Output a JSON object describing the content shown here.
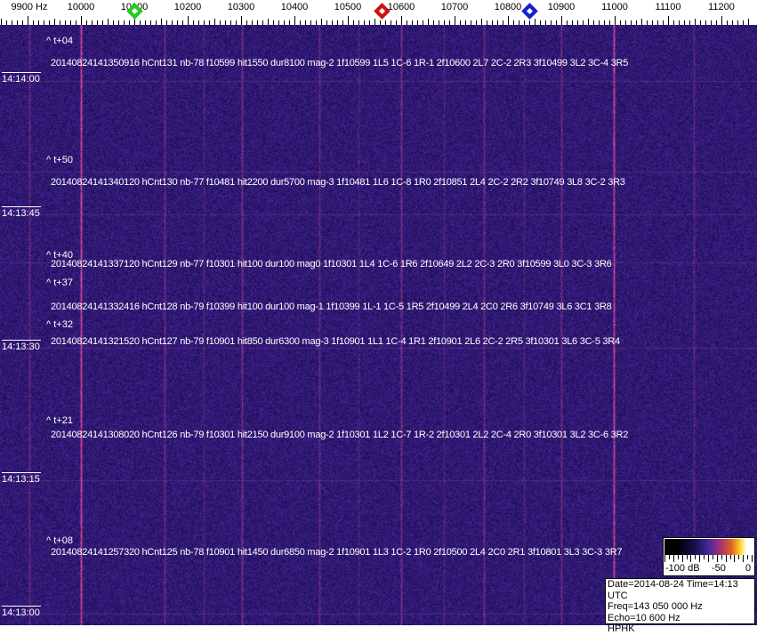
{
  "axis": {
    "unit_label": "9900 Hz",
    "ticks": [
      "10000",
      "10100",
      "10200",
      "10300",
      "10400",
      "10500",
      "10600",
      "10700",
      "10800",
      "10900",
      "11000",
      "11100",
      "11200"
    ],
    "start_hz": 9900,
    "markers": [
      {
        "name": "green-marker",
        "freq_hz": 10100,
        "color": "#22cc22"
      },
      {
        "name": "red-marker",
        "freq_hz": 10563,
        "color": "#cc1111"
      },
      {
        "name": "blue-marker",
        "freq_hz": 10840,
        "color": "#1122cc"
      }
    ]
  },
  "spectrogram": {
    "background_color": "#24186a",
    "carrier_lines_hz": [
      {
        "freq": 10000,
        "level": 1.0
      },
      {
        "freq": 10998,
        "level": 0.95
      },
      {
        "freq": 9903,
        "level": 0.35
      },
      {
        "freq": 10157,
        "level": 0.4
      },
      {
        "freq": 10302,
        "level": 0.45
      },
      {
        "freq": 10447,
        "level": 0.35
      },
      {
        "freq": 10600,
        "level": 0.45
      },
      {
        "freq": 10755,
        "level": 0.4
      },
      {
        "freq": 10900,
        "level": 0.4
      },
      {
        "freq": 11148,
        "level": 0.3
      },
      {
        "freq": 10230,
        "level": 0.2
      },
      {
        "freq": 10520,
        "level": 0.2
      },
      {
        "freq": 10680,
        "level": 0.2
      },
      {
        "freq": 10830,
        "level": 0.2
      }
    ]
  },
  "time_labels": [
    "14:14:00",
    "14:13:45",
    "14:13:30",
    "14:13:15",
    "14:13:00"
  ],
  "detections": [
    {
      "offset": "^ t+04",
      "text": "20140824141350916 hCnt131 nb-78 f10599 hit1550 dur8100 mag-2 1f10599 1L5 1C-6 1R-1 2f10600 2L7 2C-2 2R3 3f10499 3L2 3C-4 3R5"
    },
    {
      "offset": "^ t+50",
      "text": "20140824141340120 hCnt130 nb-77 f10481 hit2200 dur5700 mag-3 1f10481 1L6 1C-8 1R0 2f10851 2L4 2C-2 2R2 3f10749 3L8 3C-2 3R3"
    },
    {
      "offset": "^ t+40",
      "text": "20140824141337120 hCnt129 nb-77 f10301 hit100 dur100 mag0 1f10301 1L4 1C-6 1R6 2f10649 2L2 2C-3 2R0 3f10599 3L0 3C-3 3R6"
    },
    {
      "offset": "^ t+37",
      "text": "20140824141332416 hCnt128 nb-79 f10399 hit100 dur100 mag-1 1f10399 1L-1 1C-5 1R5 2f10499 2L4 2C0 2R6 3f10749 3L6 3C1 3R8"
    },
    {
      "offset": "^ t+32",
      "text": "20140824141321520 hCnt127 nb-79 f10901 hit850 dur6300 mag-3 1f10901 1L1 1C-4 1R1 2f10901 2L6 2C-2 2R5 3f10301 3L6 3C-5 3R4"
    },
    {
      "offset": "^ t+21",
      "text": "20140824141308020 hCnt126 nb-79 f10301 hit2150 dur9100 mag-2 1f10301 1L2 1C-7 1R-2 2f10301 2L2 2C-4 2R0 3f10301 3L2 3C-6 3R2"
    },
    {
      "offset": "^ t+08",
      "text": "20140824141257320 hCnt125 nb-78 f10901 hit1450 dur6850 mag-2 1f10901 1L3 1C-2 1R0 2f10500 2L4 2C0 2R1 3f10801 3L3 3C-3 3R7"
    }
  ],
  "colorbar": {
    "labels": [
      "-100 dB",
      "-50",
      "0"
    ]
  },
  "info": {
    "date_time": "Date=2014-08-24 Time=14:13 UTC",
    "freq": "Freq=143 050 000 Hz",
    "echo": "Echo=10 600 Hz",
    "station": "HPHK"
  }
}
